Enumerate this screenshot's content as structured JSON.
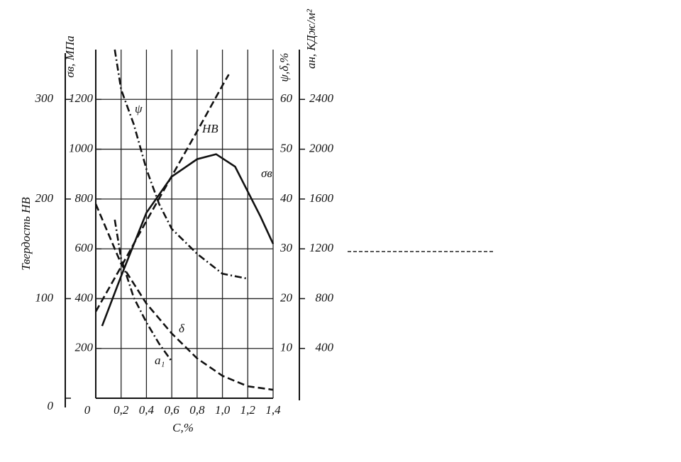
{
  "chart_data": {
    "type": "line",
    "xlabel": "С,%",
    "xlim": [
      0,
      1.4
    ],
    "xticks": [
      0,
      {
        "value": 0.2,
        "label": "0,2"
      },
      {
        "value": 0.4,
        "label": "0,4"
      },
      {
        "value": 0.6,
        "label": "0,6"
      },
      {
        "value": 0.8,
        "label": "0,8"
      },
      {
        "value": 1.0,
        "label": "1,0"
      },
      {
        "value": 1.2,
        "label": "1,2"
      },
      {
        "value": 1.4,
        "label": "1,4"
      }
    ],
    "ylabel": "Твердость НВ",
    "ylim": [
      0,
      350
    ],
    "yticks": [
      0,
      100,
      200,
      300
    ],
    "y2label": "σв, МПа",
    "y2lim": [
      0,
      1400
    ],
    "y2ticks": [
      200,
      400,
      600,
      800,
      1000,
      1200
    ],
    "y3label": "ψ,δ,%",
    "y3lim": [
      0,
      70
    ],
    "y3ticks": [
      10,
      20,
      30,
      40,
      50,
      60
    ],
    "y4label": "aн, КДж/м²",
    "y4lim": [
      0,
      2800
    ],
    "y4ticks": [
      400,
      800,
      1200,
      1600,
      2000,
      2400
    ],
    "grid": true,
    "series": [
      {
        "name": "HB",
        "axis": "y",
        "color": "#111111",
        "dash": "dashed",
        "x": [
          0,
          0.2,
          0.4,
          0.6,
          0.8,
          1.0,
          1.05
        ],
        "values": [
          87,
          132,
          178,
          223,
          268,
          314,
          325
        ]
      },
      {
        "name": "σв",
        "axis": "y2",
        "color": "#111111",
        "dash": "solid",
        "x": [
          0.05,
          0.2,
          0.4,
          0.6,
          0.8,
          0.95,
          1.1,
          1.2,
          1.3,
          1.4
        ],
        "values": [
          290,
          490,
          745,
          890,
          960,
          980,
          930,
          830,
          730,
          620
        ]
      },
      {
        "name": "ψ",
        "axis": "y3",
        "color": "#111111",
        "dash": "dashdot",
        "x": [
          0.15,
          0.2,
          0.3,
          0.4,
          0.5,
          0.6,
          0.8,
          1.0,
          1.2
        ],
        "values": [
          70,
          62,
          55,
          46,
          39,
          34,
          29,
          25,
          24
        ]
      },
      {
        "name": "δ",
        "axis": "y3",
        "color": "#111111",
        "dash": "dashed",
        "x": [
          0,
          0.1,
          0.2,
          0.4,
          0.6,
          0.8,
          1.0,
          1.2,
          1.4
        ],
        "values": [
          39,
          33,
          27,
          19,
          13,
          8,
          4.5,
          2.4,
          1.7
        ]
      },
      {
        "name": "a₁",
        "axis": "y4",
        "color": "#111111",
        "dash": "dashdot",
        "x": [
          0.15,
          0.2,
          0.3,
          0.4,
          0.5,
          0.6
        ],
        "values": [
          1434,
          1121,
          808,
          609,
          438,
          296
        ]
      }
    ]
  }
}
